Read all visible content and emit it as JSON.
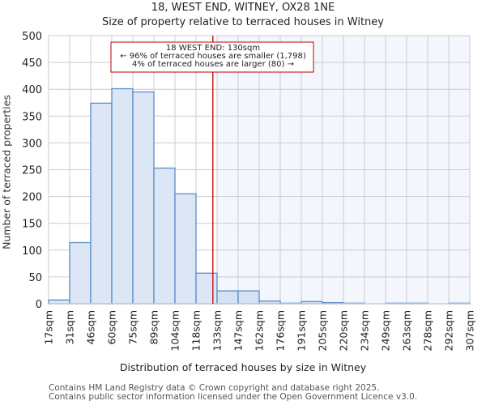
{
  "header": {
    "title": "18, WEST END, WITNEY, OX28 1NE",
    "subtitle": "Size of property relative to terraced houses in Witney"
  },
  "annotation": {
    "line1": "18 WEST END: 130sqm",
    "line2": "← 96% of terraced houses are smaller (1,798)",
    "line3": "4% of terraced houses are larger (80) →"
  },
  "footer": {
    "line1": "Contains HM Land Registry data © Crown copyright and database right 2025.",
    "line2": "Contains public sector information licensed under the Open Government Licence v3.0."
  },
  "colors": {
    "bar_fill": "#dce6f4",
    "bar_fill_right": "#d6e2f3",
    "bar_stroke": "#5b8cc8",
    "marker_line": "#c00000",
    "highlight_bg": "#f3f6fd",
    "grid": "#cccccc"
  },
  "chart_data": {
    "type": "bar",
    "title": "18, WEST END, WITNEY, OX28 1NE",
    "subtitle": "Size of property relative to terraced houses in Witney",
    "xlabel": "Distribution of terraced houses by size in Witney",
    "ylabel": "Number of terraced properties",
    "categories": [
      "17sqm",
      "31sqm",
      "46sqm",
      "60sqm",
      "75sqm",
      "89sqm",
      "104sqm",
      "118sqm",
      "133sqm",
      "147sqm",
      "162sqm",
      "176sqm",
      "191sqm",
      "205sqm",
      "220sqm",
      "234sqm",
      "249sqm",
      "263sqm",
      "278sqm",
      "292sqm",
      "307sqm"
    ],
    "values": [
      7,
      114,
      374,
      401,
      395,
      253,
      205,
      57,
      24,
      24,
      5,
      1,
      4,
      2,
      1,
      0,
      1,
      1,
      0,
      1
    ],
    "ylim": [
      0,
      500
    ],
    "yticks": [
      0,
      50,
      100,
      150,
      200,
      250,
      300,
      350,
      400,
      450,
      500
    ],
    "grid": true,
    "marker": {
      "value_sqm": 130,
      "label": "18 WEST END: 130sqm",
      "smaller_pct": 96,
      "smaller_count": 1798,
      "larger_pct": 4,
      "larger_count": 80
    }
  }
}
